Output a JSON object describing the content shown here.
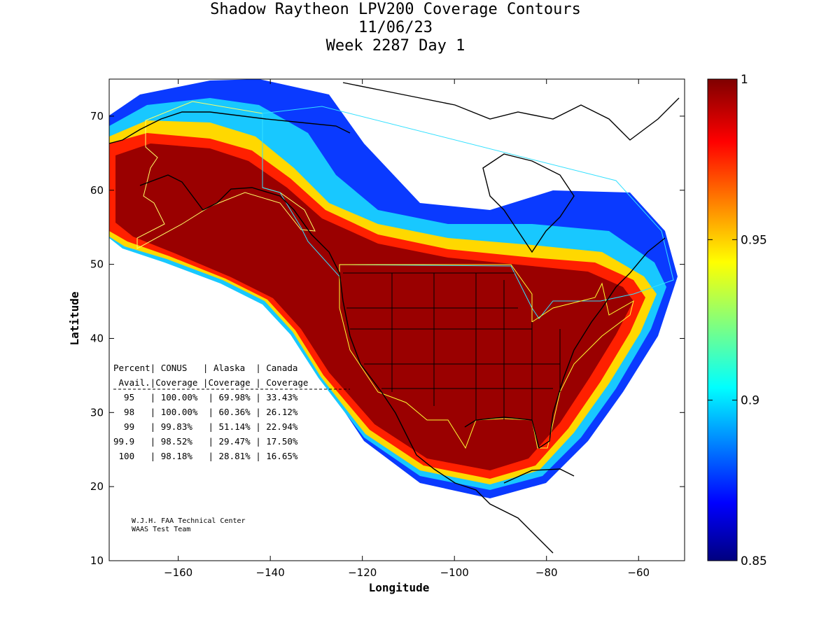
{
  "title_lines": [
    "Shadow Raytheon LPV200 Coverage Contours",
    "11/06/23",
    "Week 2287 Day 1"
  ],
  "map": {
    "xlabel": "Longitude",
    "ylabel": "Latitude",
    "xlim": [
      -175,
      -50
    ],
    "ylim": [
      10,
      75
    ],
    "x_ticks": [
      -160,
      -140,
      -120,
      -100,
      -80,
      -60
    ],
    "y_ticks": [
      10,
      20,
      30,
      40,
      50,
      60,
      70
    ],
    "x_tick_labels": [
      "−160",
      "−140",
      "−120",
      "−100",
      "−80",
      "−60"
    ],
    "y_tick_labels": [
      "10",
      "20",
      "30",
      "40",
      "50",
      "60",
      "70"
    ]
  },
  "colorbar": {
    "min": 0.85,
    "max": 1,
    "ticks": [
      0.85,
      0.9,
      0.95,
      1
    ],
    "tick_labels": [
      "0.85",
      "0.9",
      "0.95",
      "1"
    ],
    "colormap": "jet"
  },
  "stats_table": {
    "header1": "Percent| CONUS   | Alaska  | Canada",
    "header2": " Avail.|Coverage |Coverage | Coverage",
    "rows": [
      "  95   | 100.00%  | 69.98% | 33.43%",
      "  98   | 100.00%  | 60.36% | 26.12%",
      "  99   | 99.83%   | 51.14% | 22.94%",
      "99.9   | 98.52%   | 29.47% | 17.50%",
      " 100   | 98.18%   | 28.81% | 16.65%"
    ]
  },
  "credit": [
    "W.J.H. FAA Technical Center",
    "WAAS Test Team"
  ]
}
